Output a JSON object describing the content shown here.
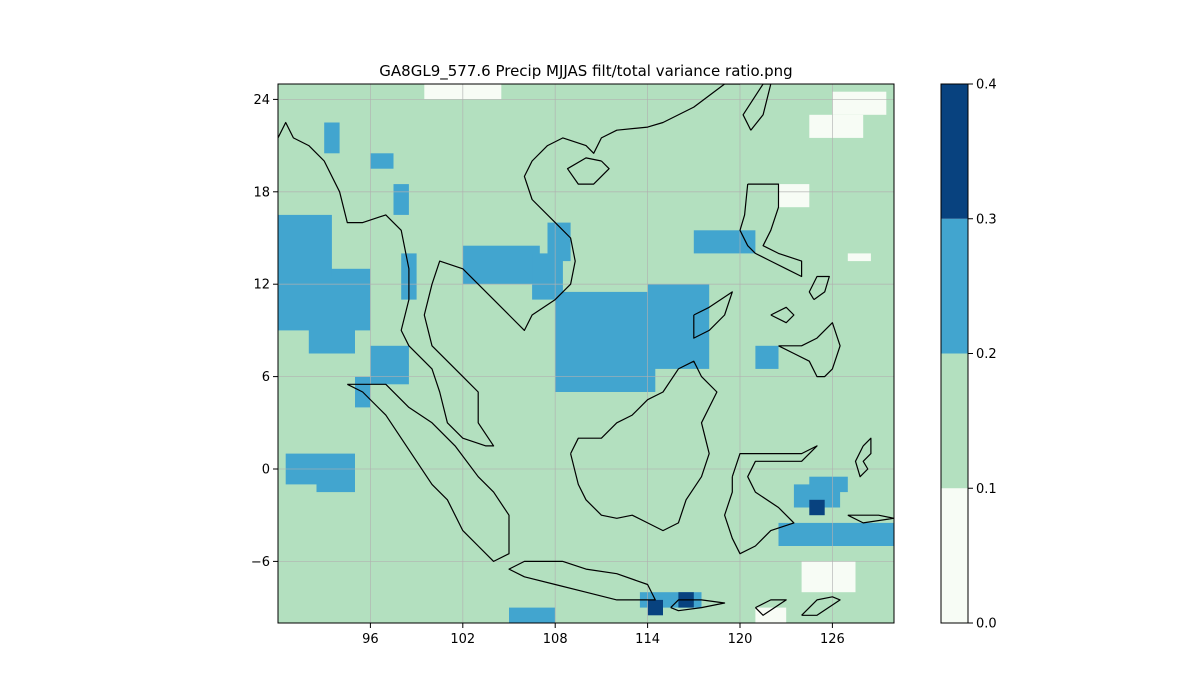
{
  "chart_data": {
    "type": "heatmap",
    "title": "GA8GL9_577.6 Precip MJJAS filt/total variance ratio.png",
    "xlabel": "",
    "ylabel": "",
    "xlim": [
      90,
      130
    ],
    "ylim": [
      -10,
      25
    ],
    "x_ticks": [
      96,
      102,
      108,
      114,
      120,
      126
    ],
    "x_tick_labels": [
      "96",
      "102",
      "108",
      "114",
      "120",
      "126"
    ],
    "y_ticks": [
      -6,
      0,
      6,
      12,
      18,
      24
    ],
    "y_tick_labels": [
      "−6",
      "0",
      "6",
      "12",
      "18",
      "24"
    ],
    "grid": true,
    "background_class": "0.1-0.2",
    "colorbar": {
      "boundaries": [
        0.0,
        0.1,
        0.2,
        0.3,
        0.4
      ],
      "tick_labels": [
        "0.0",
        "0.1",
        "0.2",
        "0.3",
        "0.4"
      ],
      "colors": [
        "#f7fcf5",
        "#b3e0bf",
        "#42a5cf",
        "#08427f"
      ]
    },
    "regions": [
      {
        "class": "0.2-0.3",
        "lon": [
          108.0,
          114.5
        ],
        "lat": [
          5.0,
          11.5
        ]
      },
      {
        "class": "0.2-0.3",
        "lon": [
          114.0,
          118.0
        ],
        "lat": [
          6.5,
          12.0
        ]
      },
      {
        "class": "0.2-0.3",
        "lon": [
          90.0,
          96.0
        ],
        "lat": [
          9.0,
          13.0
        ]
      },
      {
        "class": "0.2-0.3",
        "lon": [
          90.0,
          93.5
        ],
        "lat": [
          12.5,
          16.5
        ]
      },
      {
        "class": "0.2-0.3",
        "lon": [
          92.0,
          95.0
        ],
        "lat": [
          7.5,
          10.0
        ]
      },
      {
        "class": "0.2-0.3",
        "lon": [
          96.0,
          98.5
        ],
        "lat": [
          5.5,
          8.0
        ]
      },
      {
        "class": "0.2-0.3",
        "lon": [
          95.0,
          96.0
        ],
        "lat": [
          4.0,
          6.0
        ]
      },
      {
        "class": "0.2-0.3",
        "lon": [
          102.0,
          107.0
        ],
        "lat": [
          12.0,
          14.5
        ]
      },
      {
        "class": "0.2-0.3",
        "lon": [
          106.5,
          108.5
        ],
        "lat": [
          11.0,
          14.0
        ]
      },
      {
        "class": "0.2-0.3",
        "lon": [
          107.5,
          109.0
        ],
        "lat": [
          13.5,
          16.0
        ]
      },
      {
        "class": "0.2-0.3",
        "lon": [
          117.0,
          121.0
        ],
        "lat": [
          14.0,
          15.5
        ]
      },
      {
        "class": "0.2-0.3",
        "lon": [
          98.0,
          99.0
        ],
        "lat": [
          11.0,
          14.0
        ]
      },
      {
        "class": "0.2-0.3",
        "lon": [
          96.0,
          97.5
        ],
        "lat": [
          19.5,
          20.5
        ]
      },
      {
        "class": "0.2-0.3",
        "lon": [
          97.5,
          98.5
        ],
        "lat": [
          16.5,
          18.5
        ]
      },
      {
        "class": "0.2-0.3",
        "lon": [
          93.0,
          94.0
        ],
        "lat": [
          20.5,
          22.5
        ]
      },
      {
        "class": "0.2-0.3",
        "lon": [
          90.5,
          95.0
        ],
        "lat": [
          -1.0,
          1.0
        ]
      },
      {
        "class": "0.2-0.3",
        "lon": [
          92.5,
          95.0
        ],
        "lat": [
          -1.5,
          0.0
        ]
      },
      {
        "class": "0.2-0.3",
        "lon": [
          123.5,
          126.5
        ],
        "lat": [
          -2.5,
          -1.0
        ]
      },
      {
        "class": "0.2-0.3",
        "lon": [
          122.5,
          130.0
        ],
        "lat": [
          -5.0,
          -3.5
        ]
      },
      {
        "class": "0.2-0.3",
        "lon": [
          124.5,
          127.0
        ],
        "lat": [
          -1.5,
          -0.5
        ]
      },
      {
        "class": "0.2-0.3",
        "lon": [
          105.0,
          108.0
        ],
        "lat": [
          -10.0,
          -9.0
        ]
      },
      {
        "class": "0.2-0.3",
        "lon": [
          113.5,
          117.5
        ],
        "lat": [
          -9.0,
          -8.0
        ]
      },
      {
        "class": "0.2-0.3",
        "lon": [
          121.0,
          122.5
        ],
        "lat": [
          6.5,
          8.0
        ]
      },
      {
        "class": "0.0-0.1",
        "lon": [
          99.5,
          104.5
        ],
        "lat": [
          24.0,
          25.0
        ]
      },
      {
        "class": "0.0-0.1",
        "lon": [
          126.0,
          129.5
        ],
        "lat": [
          23.0,
          24.5
        ]
      },
      {
        "class": "0.0-0.1",
        "lon": [
          124.5,
          128.0
        ],
        "lat": [
          21.5,
          23.0
        ]
      },
      {
        "class": "0.0-0.1",
        "lon": [
          124.0,
          127.5
        ],
        "lat": [
          -8.0,
          -6.0
        ]
      },
      {
        "class": "0.0-0.1",
        "lon": [
          121.0,
          123.0
        ],
        "lat": [
          -10.0,
          -9.0
        ]
      },
      {
        "class": "0.0-0.1",
        "lon": [
          122.5,
          124.5
        ],
        "lat": [
          17.0,
          18.5
        ]
      },
      {
        "class": "0.0-0.1",
        "lon": [
          127.0,
          128.5
        ],
        "lat": [
          13.5,
          14.0
        ]
      }
    ],
    "dark_cells": [
      {
        "class": "0.3-0.4",
        "lon": 114.0,
        "lat": -9.0
      },
      {
        "class": "0.3-0.4",
        "lon": 116.0,
        "lat": -8.5
      },
      {
        "class": "0.3-0.4",
        "lon": 124.5,
        "lat": -2.5
      }
    ],
    "coastlines": [
      [
        [
          90,
          21.5
        ],
        [
          90.5,
          22.5
        ],
        [
          91,
          21.5
        ],
        [
          92,
          21
        ],
        [
          93,
          20
        ],
        [
          94,
          18
        ],
        [
          94.5,
          16
        ],
        [
          95.5,
          16
        ],
        [
          97,
          16.5
        ],
        [
          98,
          15.5
        ],
        [
          98.5,
          13
        ],
        [
          98.5,
          11
        ],
        [
          98,
          9
        ],
        [
          98.5,
          8
        ],
        [
          99.5,
          7
        ],
        [
          100,
          6.5
        ],
        [
          100.5,
          5
        ],
        [
          101,
          3
        ],
        [
          102,
          2
        ],
        [
          103.5,
          1.5
        ],
        [
          104,
          1.5
        ],
        [
          103,
          3
        ],
        [
          103,
          5
        ],
        [
          102,
          6
        ],
        [
          101,
          7
        ],
        [
          100,
          8
        ],
        [
          99.5,
          10
        ],
        [
          100,
          12
        ],
        [
          100.5,
          13.5
        ],
        [
          102,
          13
        ],
        [
          103,
          12
        ],
        [
          104,
          11
        ],
        [
          105,
          10
        ],
        [
          106,
          9
        ],
        [
          106.5,
          10
        ],
        [
          108,
          11
        ],
        [
          109,
          12
        ],
        [
          109.3,
          13.5
        ],
        [
          109,
          15
        ],
        [
          108,
          16
        ],
        [
          106.5,
          17.5
        ],
        [
          106,
          19
        ],
        [
          106.5,
          20
        ],
        [
          107.5,
          21
        ],
        [
          108.5,
          21.5
        ],
        [
          110,
          21
        ],
        [
          110.5,
          20.5
        ],
        [
          111,
          21.5
        ],
        [
          112,
          22
        ],
        [
          114,
          22.2
        ],
        [
          115,
          22.5
        ],
        [
          117,
          23.5
        ],
        [
          119,
          25
        ],
        [
          120,
          25
        ]
      ],
      [
        [
          94.5,
          5.5
        ],
        [
          95.5,
          5
        ],
        [
          97,
          3.5
        ],
        [
          98,
          2
        ],
        [
          99,
          0.5
        ],
        [
          100,
          -1
        ],
        [
          101,
          -2
        ],
        [
          102,
          -4
        ],
        [
          103,
          -5
        ],
        [
          104,
          -6
        ],
        [
          105,
          -5.5
        ],
        [
          105,
          -3
        ],
        [
          104,
          -1.5
        ],
        [
          103,
          -0.5
        ],
        [
          101.5,
          1.5
        ],
        [
          100,
          3
        ],
        [
          98.5,
          4
        ],
        [
          97,
          5.5
        ],
        [
          95.5,
          5.5
        ],
        [
          94.5,
          5.5
        ]
      ],
      [
        [
          108.5,
          -6
        ],
        [
          110,
          -6.5
        ],
        [
          112,
          -6.8
        ],
        [
          114,
          -7.5
        ],
        [
          114.5,
          -8.5
        ],
        [
          112,
          -8.5
        ],
        [
          110,
          -8
        ],
        [
          108,
          -7.5
        ],
        [
          106,
          -7
        ],
        [
          105,
          -6.5
        ],
        [
          106,
          -6
        ],
        [
          108.5,
          -6
        ]
      ],
      [
        [
          109,
          1
        ],
        [
          109.5,
          2
        ],
        [
          111,
          2
        ],
        [
          112,
          3
        ],
        [
          113,
          3.5
        ],
        [
          114,
          4.5
        ],
        [
          115,
          5
        ],
        [
          116,
          6.5
        ],
        [
          117,
          7
        ],
        [
          117.5,
          6
        ],
        [
          118.5,
          5
        ],
        [
          118,
          4
        ],
        [
          117.5,
          3
        ],
        [
          118,
          1
        ],
        [
          117.5,
          -0.5
        ],
        [
          116.5,
          -2
        ],
        [
          116,
          -3.5
        ],
        [
          115,
          -4
        ],
        [
          114,
          -3.5
        ],
        [
          113,
          -3
        ],
        [
          112,
          -3.2
        ],
        [
          111,
          -3
        ],
        [
          110,
          -2
        ],
        [
          109.5,
          -1
        ],
        [
          109,
          1
        ]
      ],
      [
        [
          119.5,
          -0.5
        ],
        [
          120,
          1
        ],
        [
          121,
          1
        ],
        [
          122.5,
          1
        ],
        [
          124,
          1
        ],
        [
          125,
          1.5
        ],
        [
          124,
          0.5
        ],
        [
          123,
          0.5
        ],
        [
          121,
          0.5
        ],
        [
          120.5,
          -0.5
        ],
        [
          121,
          -1.5
        ],
        [
          122.5,
          -2.5
        ],
        [
          123.5,
          -3.5
        ],
        [
          122,
          -4
        ],
        [
          121,
          -5
        ],
        [
          120,
          -5.5
        ],
        [
          119.5,
          -4.5
        ],
        [
          119,
          -3
        ],
        [
          119.5,
          -1.5
        ],
        [
          119.5,
          -0.5
        ]
      ],
      [
        [
          111,
          20
        ],
        [
          111.5,
          19.5
        ],
        [
          110.5,
          18.5
        ],
        [
          109.5,
          18.5
        ],
        [
          108.8,
          19.5
        ],
        [
          110,
          20.2
        ],
        [
          111,
          20
        ]
      ],
      [
        [
          120.7,
          22
        ],
        [
          121.5,
          23
        ],
        [
          122,
          25
        ],
        [
          121.5,
          25
        ],
        [
          120.2,
          23
        ],
        [
          120.7,
          22
        ]
      ],
      [
        [
          120.5,
          18.5
        ],
        [
          121,
          18.5
        ],
        [
          122.5,
          18.5
        ],
        [
          122.5,
          17
        ],
        [
          122,
          15.5
        ],
        [
          121.5,
          14.5
        ],
        [
          122.5,
          14
        ],
        [
          124,
          13.5
        ],
        [
          124,
          12.5
        ],
        [
          123,
          13
        ],
        [
          122,
          13.5
        ],
        [
          121,
          14
        ],
        [
          120.5,
          14.5
        ],
        [
          120,
          15.5
        ],
        [
          120.3,
          16.5
        ],
        [
          120.5,
          18.5
        ]
      ],
      [
        [
          122.5,
          8
        ],
        [
          124,
          8
        ],
        [
          125,
          8.5
        ],
        [
          126,
          9.5
        ],
        [
          126.5,
          8
        ],
        [
          126,
          6.5
        ],
        [
          125.5,
          6
        ],
        [
          125,
          6
        ],
        [
          124.5,
          7
        ],
        [
          123.5,
          7.5
        ],
        [
          122.5,
          8
        ]
      ],
      [
        [
          128,
          1.5
        ],
        [
          128.5,
          2
        ],
        [
          128.5,
          1
        ],
        [
          128,
          0.5
        ],
        [
          128.3,
          0
        ],
        [
          127.8,
          -0.5
        ],
        [
          127.5,
          0.5
        ],
        [
          128,
          1.5
        ]
      ],
      [
        [
          121,
          -9
        ],
        [
          122,
          -8.5
        ],
        [
          123,
          -8.5
        ],
        [
          121.5,
          -9.5
        ],
        [
          121,
          -9
        ]
      ],
      [
        [
          124,
          -9.5
        ],
        [
          125,
          -8.5
        ],
        [
          126,
          -8.3
        ],
        [
          126.5,
          -8.5
        ],
        [
          125,
          -9.5
        ],
        [
          124,
          -9.5
        ]
      ],
      [
        [
          115.5,
          -9
        ],
        [
          116,
          -8.5
        ],
        [
          117.5,
          -8.5
        ],
        [
          119,
          -8.7
        ],
        [
          117.5,
          -9
        ],
        [
          116,
          -9.2
        ],
        [
          115.5,
          -9
        ]
      ],
      [
        [
          127,
          -3
        ],
        [
          128,
          -3
        ],
        [
          129,
          -3
        ],
        [
          130,
          -3.2
        ],
        [
          128,
          -3.5
        ],
        [
          127,
          -3
        ]
      ],
      [
        [
          122,
          10
        ],
        [
          123,
          10.5
        ],
        [
          123.5,
          10
        ],
        [
          123,
          9.5
        ],
        [
          122,
          10
        ]
      ],
      [
        [
          124.8,
          11
        ],
        [
          125.5,
          11.5
        ],
        [
          125.8,
          12.5
        ],
        [
          125,
          12.5
        ],
        [
          124.5,
          11.5
        ],
        [
          124.8,
          11
        ]
      ],
      [
        [
          117,
          10
        ],
        [
          118,
          10.5
        ],
        [
          119.5,
          11.5
        ],
        [
          119,
          10
        ],
        [
          118,
          9
        ],
        [
          117,
          8.5
        ],
        [
          117,
          10
        ]
      ]
    ]
  }
}
